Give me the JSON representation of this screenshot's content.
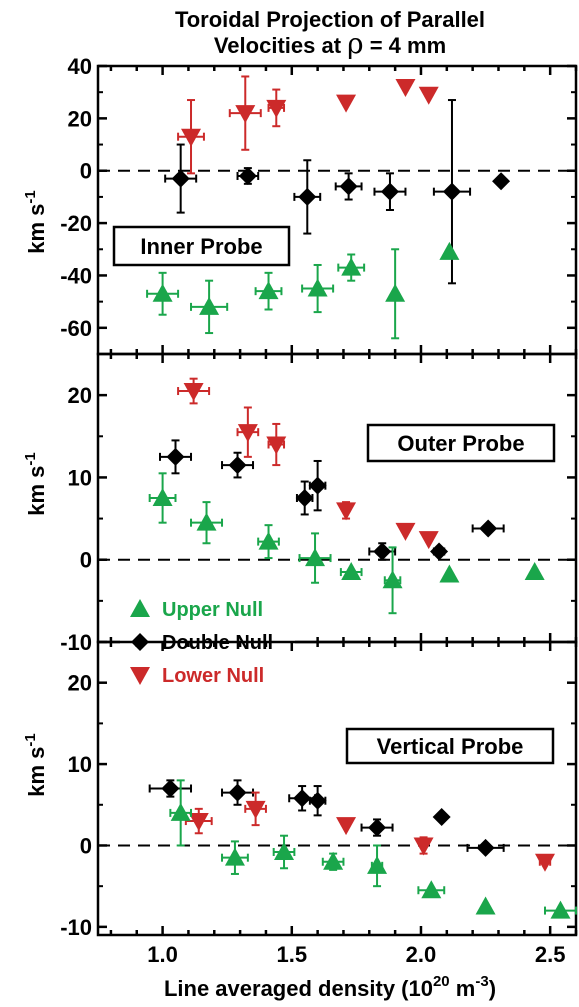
{
  "figure": {
    "title_line1": "Toroidal Projection of Parallel",
    "title_line2_pre": "Velocities at ",
    "title_rho": "ρ",
    "title_line2_post": " = 4 mm",
    "xlabel_main": "Line averaged density (10",
    "xlabel_exp1": "20",
    "xlabel_mid": " m",
    "xlabel_exp2": "-3",
    "xlabel_end": ")",
    "ylabel_main": "km s",
    "ylabel_exp": "-1"
  },
  "colors": {
    "upper": "#1aa64b",
    "double": "#000000",
    "lower": "#cc2a2a"
  },
  "legend": [
    {
      "key": "upper",
      "label": "Upper Null",
      "marker": "triangle-up"
    },
    {
      "key": "double",
      "label": "Double Null",
      "marker": "diamond"
    },
    {
      "key": "lower",
      "label": "Lower Null",
      "marker": "triangle-down"
    }
  ],
  "chart_data": [
    {
      "type": "scatter",
      "panel_label": "Inner Probe",
      "xlim": [
        0.75,
        2.6
      ],
      "ylim": [
        -70,
        40
      ],
      "yticks": [
        -60,
        -40,
        -20,
        0,
        20,
        40
      ],
      "xticks": [
        1.0,
        1.5,
        2.0,
        2.5
      ],
      "series": [
        {
          "key": "lower",
          "name": "Lower Null",
          "points": [
            {
              "x": 1.11,
              "y": 13,
              "xerr": 0.05,
              "yerr": 14
            },
            {
              "x": 1.32,
              "y": 22,
              "xerr": 0.06,
              "yerr": 14
            },
            {
              "x": 1.44,
              "y": 24,
              "xerr": 0.03,
              "yerr": 7
            },
            {
              "x": 1.71,
              "y": 26
            },
            {
              "x": 1.94,
              "y": 32
            },
            {
              "x": 2.03,
              "y": 29
            }
          ]
        },
        {
          "key": "double",
          "name": "Double Null",
          "points": [
            {
              "x": 1.07,
              "y": -3,
              "xerr": 0.06,
              "yerr": 13
            },
            {
              "x": 1.33,
              "y": -2,
              "xerr": 0.04,
              "yerr": 3
            },
            {
              "x": 1.56,
              "y": -10,
              "xerr": 0.05,
              "yerr": 14
            },
            {
              "x": 1.72,
              "y": -6,
              "xerr": 0.05,
              "yerr": 5
            },
            {
              "x": 1.88,
              "y": -8,
              "xerr": 0.06,
              "yerr": 7
            },
            {
              "x": 2.12,
              "y": -8,
              "xerr": 0.07,
              "yerr": 35
            },
            {
              "x": 2.31,
              "y": -4
            }
          ]
        },
        {
          "key": "upper",
          "name": "Upper Null",
          "points": [
            {
              "x": 1.0,
              "y": -47,
              "xerr": 0.06,
              "yerr": 8
            },
            {
              "x": 1.18,
              "y": -52,
              "xerr": 0.07,
              "yerr": 10
            },
            {
              "x": 1.41,
              "y": -46,
              "xerr": 0.05,
              "yerr": 7
            },
            {
              "x": 1.6,
              "y": -45,
              "xerr": 0.06,
              "yerr": 9
            },
            {
              "x": 1.73,
              "y": -37,
              "xerr": 0.05,
              "yerr": 5
            },
            {
              "x": 1.9,
              "y": -47,
              "yerr": 17
            },
            {
              "x": 2.11,
              "y": -31
            }
          ]
        }
      ]
    },
    {
      "type": "scatter",
      "panel_label": "Outer Probe",
      "xlim": [
        0.75,
        2.6
      ],
      "ylim": [
        -10,
        25
      ],
      "yticks": [
        -10,
        0,
        10,
        20
      ],
      "xticks": [
        1.0,
        1.5,
        2.0,
        2.5
      ],
      "series": [
        {
          "key": "lower",
          "name": "Lower Null",
          "points": [
            {
              "x": 1.12,
              "y": 20.5,
              "xerr": 0.06,
              "yerr": 1.5
            },
            {
              "x": 1.33,
              "y": 15.5,
              "xerr": 0.04,
              "yerr": 3
            },
            {
              "x": 1.44,
              "y": 14,
              "xerr": 0.03,
              "yerr": 2.5
            },
            {
              "x": 1.71,
              "y": 6,
              "yerr": 1
            },
            {
              "x": 1.94,
              "y": 3.5
            },
            {
              "x": 2.03,
              "y": 2.5
            }
          ]
        },
        {
          "key": "double",
          "name": "Double Null",
          "points": [
            {
              "x": 1.05,
              "y": 12.5,
              "xerr": 0.06,
              "yerr": 2
            },
            {
              "x": 1.29,
              "y": 11.5,
              "xerr": 0.06,
              "yerr": 1.5
            },
            {
              "x": 1.55,
              "y": 7.5,
              "xerr": 0.03,
              "yerr": 2
            },
            {
              "x": 1.6,
              "y": 9,
              "xerr": 0.03,
              "yerr": 3
            },
            {
              "x": 1.85,
              "y": 1,
              "xerr": 0.05,
              "yerr": 1
            },
            {
              "x": 2.07,
              "y": 1,
              "xerr": 0.02
            },
            {
              "x": 2.26,
              "y": 3.8,
              "xerr": 0.06
            }
          ]
        },
        {
          "key": "upper",
          "name": "Upper Null",
          "points": [
            {
              "x": 1.0,
              "y": 7.5,
              "xerr": 0.05,
              "yerr": 3
            },
            {
              "x": 1.17,
              "y": 4.5,
              "xerr": 0.06,
              "yerr": 2.5
            },
            {
              "x": 1.41,
              "y": 2.2,
              "xerr": 0.04,
              "yerr": 2
            },
            {
              "x": 1.59,
              "y": 0.2,
              "xerr": 0.06,
              "yerr": 3
            },
            {
              "x": 1.73,
              "y": -1.5,
              "xerr": 0.04
            },
            {
              "x": 1.89,
              "y": -2.5,
              "xerr": 0.03,
              "yerr": 4
            },
            {
              "x": 2.11,
              "y": -1.8
            },
            {
              "x": 2.44,
              "y": -1.5
            }
          ]
        }
      ]
    },
    {
      "type": "scatter",
      "panel_label": "Vertical Probe",
      "xlim": [
        0.75,
        2.6
      ],
      "ylim": [
        -11,
        25
      ],
      "yticks": [
        -10,
        0,
        10,
        20
      ],
      "xticks": [
        1.0,
        1.5,
        2.0,
        2.5
      ],
      "series": [
        {
          "key": "double",
          "name": "Double Null",
          "points": [
            {
              "x": 1.03,
              "y": 7,
              "xerr": 0.08,
              "yerr": 1
            },
            {
              "x": 1.29,
              "y": 6.5,
              "xerr": 0.06,
              "yerr": 1.5
            },
            {
              "x": 1.54,
              "y": 5.8,
              "xerr": 0.05,
              "yerr": 1.5
            },
            {
              "x": 1.6,
              "y": 5.5,
              "xerr": 0.03,
              "yerr": 1.8
            },
            {
              "x": 1.83,
              "y": 2.2,
              "xerr": 0.06,
              "yerr": 1
            },
            {
              "x": 2.08,
              "y": 3.5
            },
            {
              "x": 2.25,
              "y": -0.3,
              "xerr": 0.07
            }
          ]
        },
        {
          "key": "lower",
          "name": "Lower Null",
          "points": [
            {
              "x": 1.14,
              "y": 3,
              "xerr": 0.05,
              "yerr": 1.5
            },
            {
              "x": 1.36,
              "y": 4.5,
              "xerr": 0.04,
              "yerr": 2
            },
            {
              "x": 1.71,
              "y": 2.5
            },
            {
              "x": 2.01,
              "y": 0,
              "yerr": 1
            },
            {
              "x": 2.48,
              "y": -2,
              "xerr": 0.02
            }
          ]
        },
        {
          "key": "upper",
          "name": "Upper Null",
          "points": [
            {
              "x": 1.07,
              "y": 4,
              "xerr": 0.04,
              "yerr": 4
            },
            {
              "x": 1.28,
              "y": -1.5,
              "xerr": 0.05,
              "yerr": 2
            },
            {
              "x": 1.47,
              "y": -0.8,
              "xerr": 0.04,
              "yerr": 2
            },
            {
              "x": 1.66,
              "y": -2,
              "xerr": 0.04,
              "yerr": 1
            },
            {
              "x": 1.83,
              "y": -2.5,
              "xerr": 0.02,
              "yerr": 2.5
            },
            {
              "x": 2.04,
              "y": -5.5,
              "xerr": 0.05
            },
            {
              "x": 2.25,
              "y": -7.5
            },
            {
              "x": 2.54,
              "y": -8,
              "xerr": 0.06
            }
          ]
        }
      ]
    }
  ]
}
